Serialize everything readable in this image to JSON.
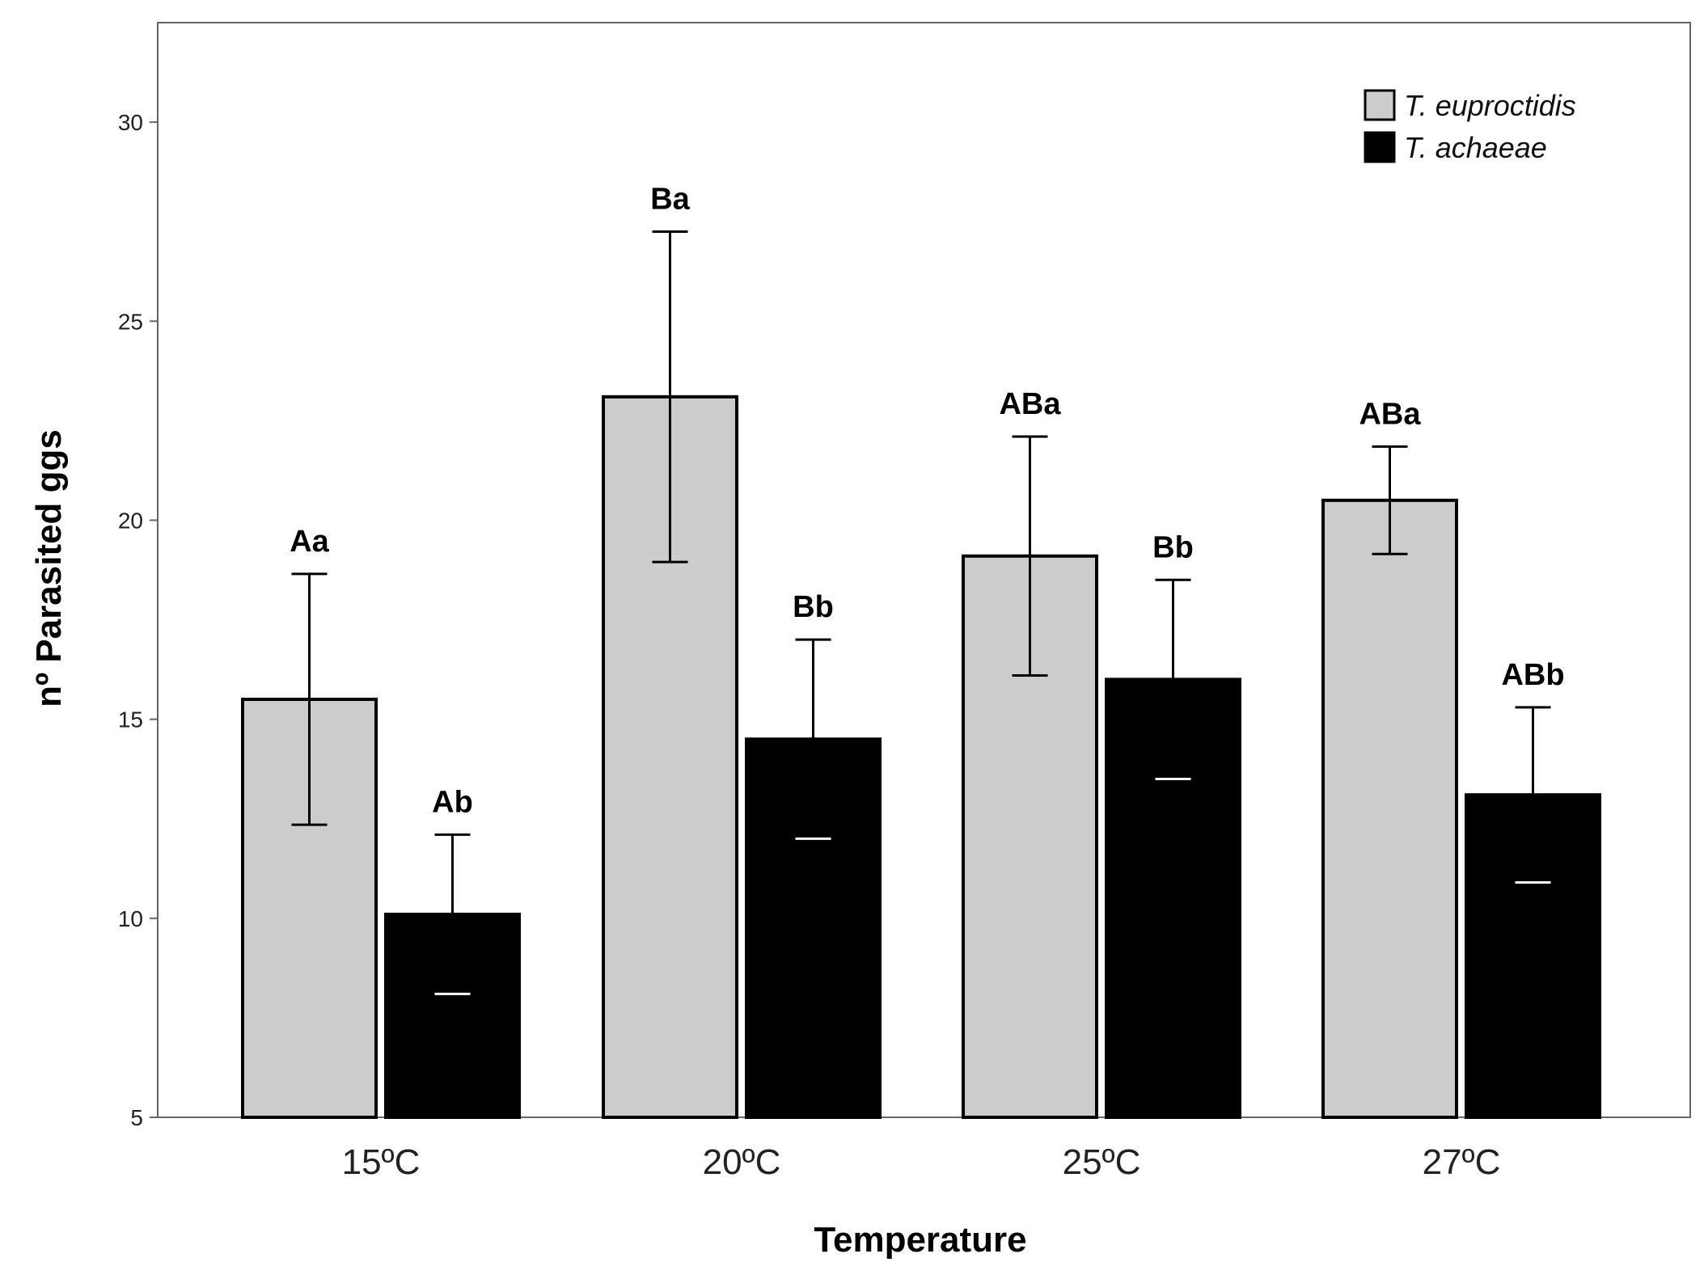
{
  "chart_data": {
    "type": "bar",
    "title": "",
    "xlabel": "Temperature",
    "ylabel": "nº Parasited ggs",
    "ylim": [
      5,
      32.5
    ],
    "yticks": [
      5,
      10,
      15,
      20,
      25,
      30
    ],
    "categories": [
      "15ºC",
      "20ºC",
      "25ºC",
      "27ºC"
    ],
    "legend_position": "top-right",
    "series": [
      {
        "name": "T. euproctidis",
        "color": "#cccccc",
        "values": [
          15.5,
          23.1,
          19.1,
          20.5
        ],
        "error": [
          3.15,
          4.15,
          3.0,
          1.35
        ],
        "labels": [
          "Aa",
          "Ba",
          "ABa",
          "ABa"
        ]
      },
      {
        "name": "T. achaeae",
        "color": "#000000",
        "values": [
          10.1,
          14.5,
          16.0,
          13.1
        ],
        "error": [
          2.0,
          2.5,
          2.5,
          2.2
        ],
        "labels": [
          "Ab",
          "Bb",
          "Bb",
          "ABb"
        ]
      }
    ]
  }
}
